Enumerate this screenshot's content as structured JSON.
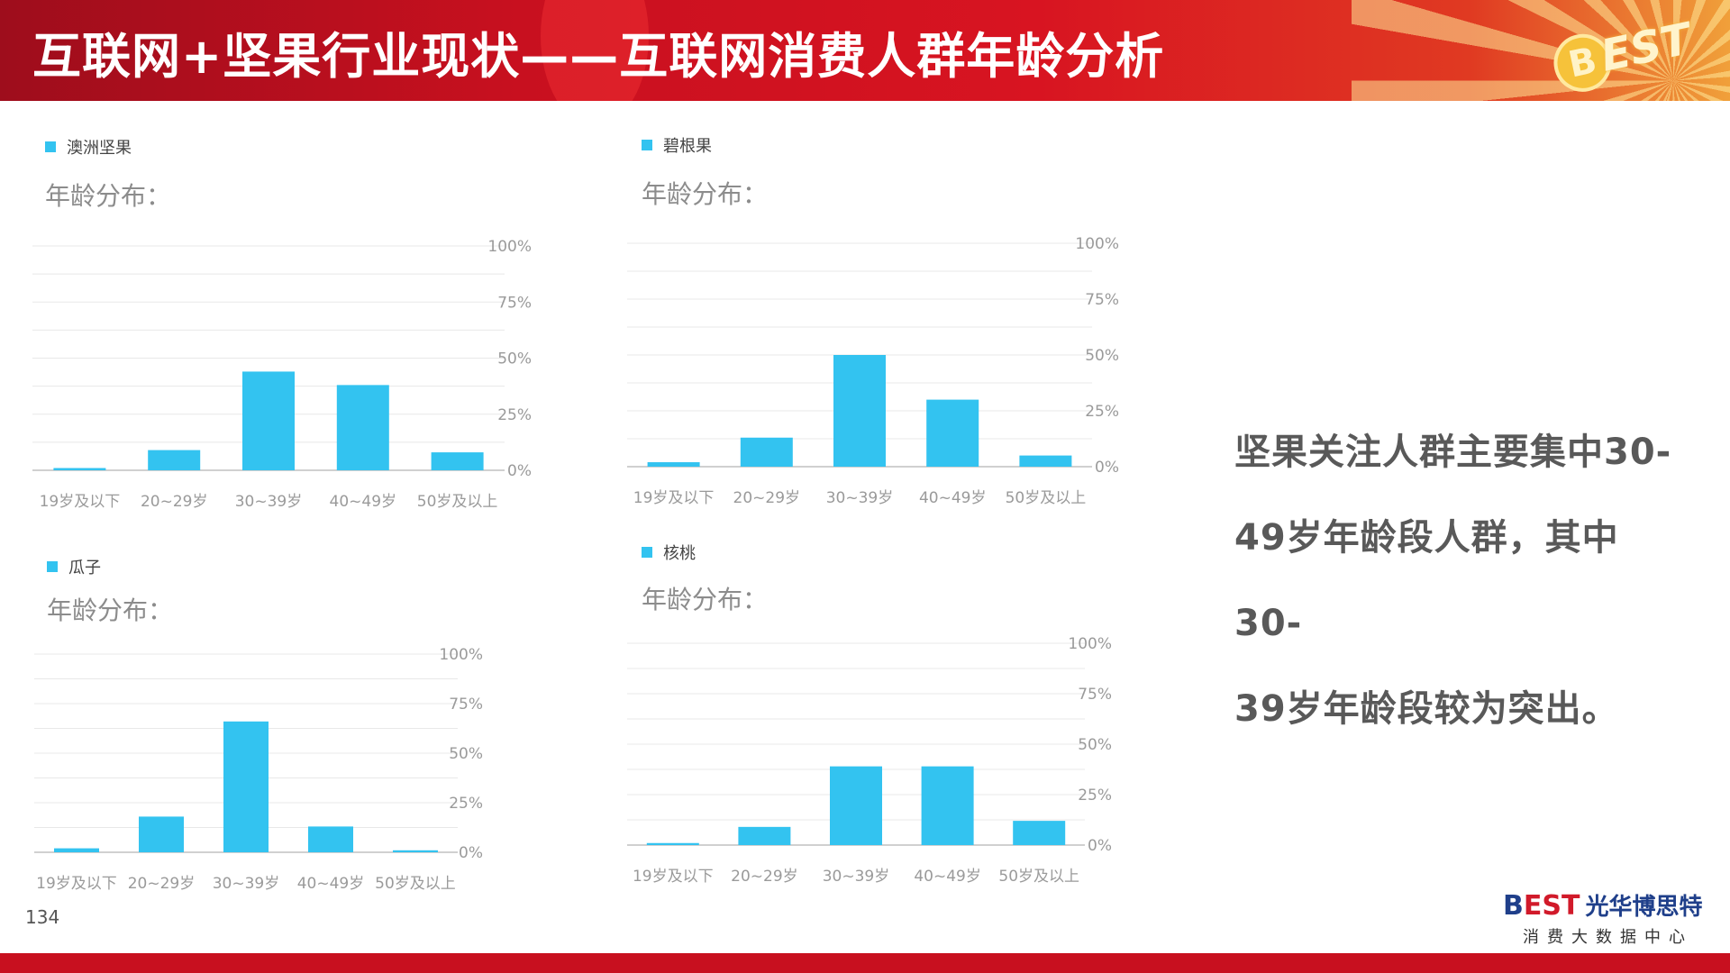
{
  "header": {
    "title": "互联网+坚果行业现状——互联网消费人群年龄分析",
    "logo_text": "BEST"
  },
  "charts_common": {
    "subtitle": "年龄分布：",
    "bar_color": "#33c3f0",
    "grid_color": "#e8e8e8",
    "tick_labels": [
      "0%",
      "25%",
      "50%",
      "75%",
      "100%"
    ]
  },
  "chart_data": [
    {
      "type": "bar",
      "legend": "澳洲坚果",
      "categories": [
        "19岁及以下",
        "20~29岁",
        "30~39岁",
        "40~49岁",
        "50岁及以上"
      ],
      "values": [
        1,
        9,
        44,
        38,
        8
      ],
      "ylim": [
        0,
        100
      ],
      "yticks": [
        "0%",
        "25%",
        "50%",
        "75%",
        "100%"
      ],
      "grid": true
    },
    {
      "type": "bar",
      "legend": "碧根果",
      "categories": [
        "19岁及以下",
        "20~29岁",
        "30~39岁",
        "40~49岁",
        "50岁及以上"
      ],
      "values": [
        2,
        13,
        50,
        30,
        5
      ],
      "ylim": [
        0,
        100
      ],
      "yticks": [
        "0%",
        "25%",
        "50%",
        "75%",
        "100%"
      ],
      "grid": true
    },
    {
      "type": "bar",
      "legend": "瓜子",
      "categories": [
        "19岁及以下",
        "20~29岁",
        "30~39岁",
        "40~49岁",
        "50岁及以上"
      ],
      "values": [
        2,
        18,
        66,
        13,
        1
      ],
      "ylim": [
        0,
        100
      ],
      "yticks": [
        "0%",
        "25%",
        "50%",
        "75%",
        "100%"
      ],
      "grid": true
    },
    {
      "type": "bar",
      "legend": "核桃",
      "categories": [
        "19岁及以下",
        "20~29岁",
        "30~39岁",
        "40~49岁",
        "50岁及以上"
      ],
      "values": [
        1,
        9,
        39,
        39,
        12
      ],
      "ylim": [
        0,
        100
      ],
      "yticks": [
        "0%",
        "25%",
        "50%",
        "75%",
        "100%"
      ],
      "grid": true
    }
  ],
  "summary": {
    "line1": "坚果关注人群主要集中30-",
    "line2": "49岁年龄段人群，其中30-",
    "line3": "39岁年龄段较为突出。"
  },
  "footer": {
    "page_number": "134",
    "brand_b": "B",
    "brand_est": "EST",
    "brand_cn": "光华博思特",
    "brand_sub": "消费大数据中心"
  }
}
